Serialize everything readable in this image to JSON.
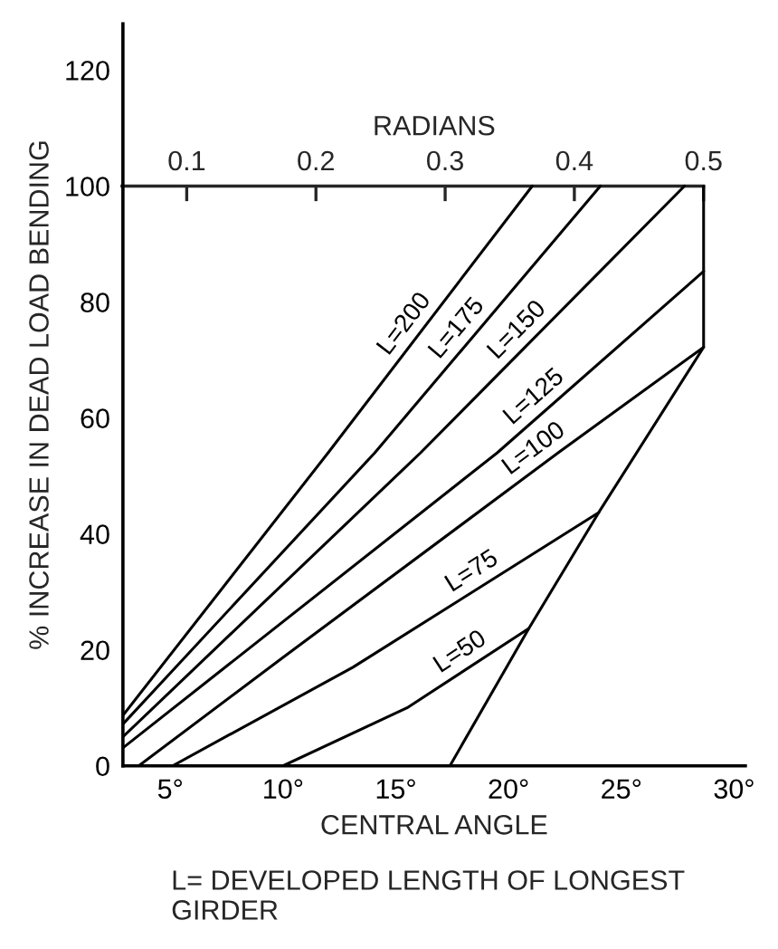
{
  "chart_data": {
    "type": "line",
    "xlabel": "CENTRAL ANGLE",
    "ylabel": "% INCREASE IN DEAD LOAD BENDING",
    "x2label": "RADIANS",
    "xlim": [
      2.9,
      30.5
    ],
    "ylim": [
      0,
      128
    ],
    "xticks": [
      {
        "value": 5,
        "label": "5°"
      },
      {
        "value": 10,
        "label": "10°"
      },
      {
        "value": 15,
        "label": "15°"
      },
      {
        "value": 20,
        "label": "20°"
      },
      {
        "value": 25,
        "label": "25°"
      },
      {
        "value": 30,
        "label": "30°"
      }
    ],
    "yticks": [
      0,
      20,
      40,
      60,
      80,
      100,
      120
    ],
    "x2lim": [
      0.05,
      0.5
    ],
    "x2ticks": [
      0.1,
      0.2,
      0.3,
      0.4,
      0.5
    ],
    "grid": false,
    "legend": false,
    "marker": "none",
    "line_style": "solid",
    "series": [
      {
        "name": "L=200",
        "color": "#000000",
        "x": [
          2.9,
          12.0,
          21.05
        ],
        "values": [
          8.7,
          54,
          100
        ]
      },
      {
        "name": "L=175",
        "color": "#000000",
        "x": [
          2.9,
          14.07,
          24.07
        ],
        "values": [
          7.2,
          54,
          100
        ]
      },
      {
        "name": "L=150",
        "color": "#000000",
        "x": [
          2.9,
          16.1,
          27.8
        ],
        "values": [
          5.0,
          54,
          100
        ]
      },
      {
        "name": "L=125",
        "color": "#000000",
        "x": [
          2.9,
          19.5,
          28.65
        ],
        "values": [
          3.1,
          54,
          85.3
        ]
      },
      {
        "name": "L=100",
        "color": "#000000",
        "x": [
          3.6,
          10.0,
          22.2,
          28.65
        ],
        "values": [
          0,
          18.7,
          54,
          72.2
        ]
      },
      {
        "name": "L=75",
        "color": "#000000",
        "x": [
          5.1,
          13.1,
          24.0
        ],
        "values": [
          0,
          17,
          43.7
        ]
      },
      {
        "name": "L=50",
        "color": "#000000",
        "x": [
          10.0,
          15.5,
          20.9
        ],
        "values": [
          0,
          10,
          23.7
        ]
      },
      {
        "color": "#000000",
        "x": [
          17.4,
          20.9,
          24.0,
          28.65,
          28.65
        ],
        "values": [
          0,
          23.7,
          43.7,
          72.2,
          100
        ]
      }
    ],
    "annotations": [
      "L= DEVELOPED LENGTH OF LONGEST GIRDER"
    ]
  }
}
